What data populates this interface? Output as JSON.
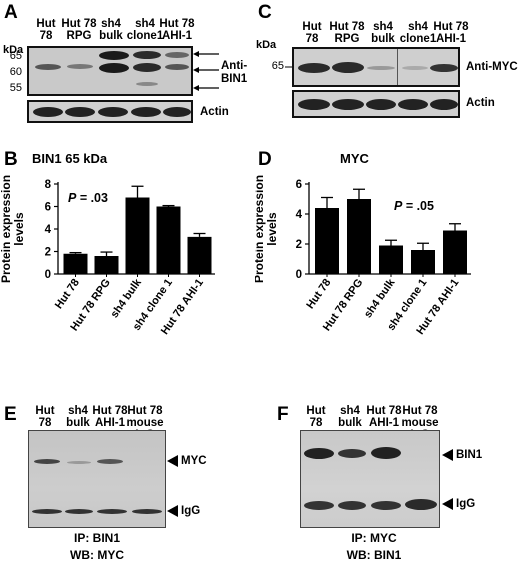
{
  "panels": {
    "A": {
      "letter": "A",
      "lanes": [
        "Hut\n78",
        "Hut 78\nRPG",
        "sh4\nbulk",
        "sh4\nclone1",
        "Hut 78\nAHI-1"
      ],
      "unit": "kDa",
      "markers": [
        "65",
        "60",
        "55"
      ],
      "antibody": "Anti-\nBIN1",
      "loading": "Actin"
    },
    "C": {
      "letter": "C",
      "lanes": [
        "Hut\n78",
        "Hut 78\nRPG",
        "sh4\nbulk",
        "sh4\nclone1",
        "Hut 78\nAHI-1"
      ],
      "unit": "kDa",
      "markers": [
        "65"
      ],
      "antibody": "Anti-MYC",
      "loading": "Actin"
    },
    "E": {
      "letter": "E",
      "lanes": [
        "Hut\n78",
        "sh4\nbulk",
        "Hut 78\nAHI-1",
        "Hut 78\nmouse IgG"
      ],
      "bands": [
        "MYC",
        "IgG"
      ],
      "ip": "IP: BIN1",
      "wb": "WB: MYC"
    },
    "F": {
      "letter": "F",
      "lanes": [
        "Hut\n78",
        "sh4\nbulk",
        "Hut 78\nAHI-1",
        "Hut 78\nmouse IgG"
      ],
      "bands": [
        "BIN1",
        "IgG"
      ],
      "ip": "IP: MYC",
      "wb": "WB: BIN1"
    }
  },
  "chart_data": [
    {
      "panel": "B",
      "type": "bar",
      "title": "BIN1 65 kDa",
      "annotation_prefix": "P",
      "annotation_value": "= .03",
      "ylabel": "Protein expression levels",
      "categories": [
        "Hut 78",
        "Hut 78 RPG",
        "sh4 bulk",
        "sh4 clone 1",
        "Hut 78 AHI-1"
      ],
      "values": [
        1.8,
        1.6,
        6.8,
        6.0,
        3.3
      ],
      "errors": [
        0.1,
        0.35,
        1.0,
        0.08,
        0.3
      ],
      "ylim": [
        0,
        8
      ],
      "yticks": [
        0,
        2,
        4,
        6,
        8
      ]
    },
    {
      "panel": "D",
      "type": "bar",
      "title": "MYC",
      "annotation_prefix": "P",
      "annotation_value": "= .05",
      "ylabel": "Protein expression levels",
      "categories": [
        "Hut 78",
        "Hut 78 RPG",
        "sh4 bulk",
        "sh4 clone 1",
        "Hut 78 AHI-1"
      ],
      "values": [
        4.4,
        5.0,
        1.9,
        1.6,
        2.9
      ],
      "errors": [
        0.7,
        0.65,
        0.35,
        0.45,
        0.45
      ],
      "ylim": [
        0,
        6
      ],
      "yticks": [
        0,
        2,
        4,
        6
      ]
    }
  ]
}
